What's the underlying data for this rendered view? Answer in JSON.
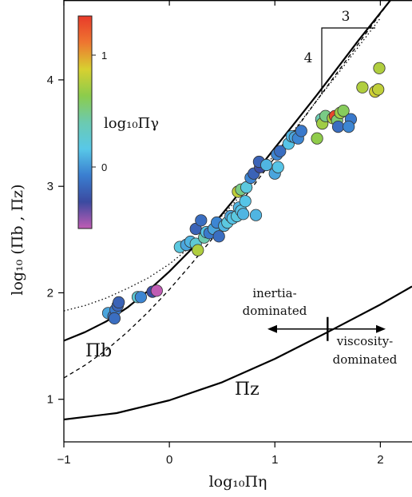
{
  "chart_data": {
    "type": "scatter",
    "title": "",
    "xlabel": "log₁₀Πη",
    "ylabel": "log₁₀ (Πb , Πz)",
    "xlim": [
      -1,
      2.3
    ],
    "ylim": [
      0.6,
      4.75
    ],
    "xticks": [
      -1,
      0,
      1,
      2
    ],
    "xtick_labels": [
      "−1",
      "0",
      "1",
      "2"
    ],
    "yticks": [
      1,
      2,
      3,
      4
    ],
    "ytick_labels": [
      "1",
      "2",
      "3",
      "4"
    ],
    "grid": false,
    "colorbar": {
      "label": "log₁₀Πγ",
      "range": [
        -0.55,
        1.35
      ],
      "ticks": [
        0,
        1
      ],
      "tick_labels": [
        "0",
        "1"
      ],
      "colors": [
        "#c05cb4",
        "#3b4aa0",
        "#3a7ed0",
        "#58c8e8",
        "#6ccab0",
        "#8ccc4c",
        "#d8d030",
        "#ee7630",
        "#e83a2a"
      ],
      "placement": "top-left"
    },
    "points": [
      {
        "x": -0.58,
        "y": 1.81,
        "c": 0.05
      },
      {
        "x": -0.53,
        "y": 1.78,
        "c": -0.12
      },
      {
        "x": -0.51,
        "y": 1.84,
        "c": -0.1
      },
      {
        "x": -0.49,
        "y": 1.88,
        "c": -0.18
      },
      {
        "x": -0.52,
        "y": 1.76,
        "c": -0.15
      },
      {
        "x": -0.48,
        "y": 1.91,
        "c": -0.2
      },
      {
        "x": -0.3,
        "y": 1.96,
        "c": 0.25
      },
      {
        "x": -0.27,
        "y": 1.96,
        "c": -0.05
      },
      {
        "x": -0.16,
        "y": 2.01,
        "c": -0.3
      },
      {
        "x": -0.12,
        "y": 2.02,
        "c": -0.55
      },
      {
        "x": 0.1,
        "y": 2.43,
        "c": 0.2
      },
      {
        "x": 0.16,
        "y": 2.45,
        "c": 0.05
      },
      {
        "x": 0.2,
        "y": 2.48,
        "c": 0.1
      },
      {
        "x": 0.25,
        "y": 2.46,
        "c": 0.25
      },
      {
        "x": 0.27,
        "y": 2.4,
        "c": 0.75
      },
      {
        "x": 0.25,
        "y": 2.6,
        "c": -0.2
      },
      {
        "x": 0.3,
        "y": 2.68,
        "c": -0.15
      },
      {
        "x": 0.33,
        "y": 2.52,
        "c": 0.4
      },
      {
        "x": 0.35,
        "y": 2.57,
        "c": 0.15
      },
      {
        "x": 0.38,
        "y": 2.56,
        "c": -0.1
      },
      {
        "x": 0.42,
        "y": 2.6,
        "c": 0.05
      },
      {
        "x": 0.47,
        "y": 2.53,
        "c": -0.15
      },
      {
        "x": 0.45,
        "y": 2.66,
        "c": -0.05
      },
      {
        "x": 0.52,
        "y": 2.63,
        "c": 0.1
      },
      {
        "x": 0.55,
        "y": 2.66,
        "c": 0.2
      },
      {
        "x": 0.58,
        "y": 2.72,
        "c": 0.05
      },
      {
        "x": 0.6,
        "y": 2.7,
        "c": 0.15
      },
      {
        "x": 0.64,
        "y": 2.72,
        "c": 0.2
      },
      {
        "x": 0.66,
        "y": 2.8,
        "c": 0.1
      },
      {
        "x": 0.68,
        "y": 2.77,
        "c": 0.15
      },
      {
        "x": 0.7,
        "y": 2.74,
        "c": 0.1
      },
      {
        "x": 0.72,
        "y": 2.86,
        "c": 0.15
      },
      {
        "x": 0.65,
        "y": 2.95,
        "c": 0.8
      },
      {
        "x": 0.68,
        "y": 2.97,
        "c": 0.5
      },
      {
        "x": 0.73,
        "y": 2.99,
        "c": 0.2
      },
      {
        "x": 0.77,
        "y": 3.08,
        "c": -0.05
      },
      {
        "x": 0.8,
        "y": 3.12,
        "c": -0.2
      },
      {
        "x": 0.86,
        "y": 3.18,
        "c": -0.3
      },
      {
        "x": 0.85,
        "y": 3.23,
        "c": -0.2
      },
      {
        "x": 0.82,
        "y": 2.73,
        "c": 0.1
      },
      {
        "x": 0.92,
        "y": 3.2,
        "c": 0.1
      },
      {
        "x": 1.0,
        "y": 3.12,
        "c": 0.05
      },
      {
        "x": 1.03,
        "y": 3.18,
        "c": 0.15
      },
      {
        "x": 1.02,
        "y": 3.3,
        "c": -0.05
      },
      {
        "x": 1.05,
        "y": 3.33,
        "c": -0.15
      },
      {
        "x": 1.13,
        "y": 3.4,
        "c": 0.15
      },
      {
        "x": 1.16,
        "y": 3.47,
        "c": 0.1
      },
      {
        "x": 1.19,
        "y": 3.46,
        "c": 0.05
      },
      {
        "x": 1.22,
        "y": 3.45,
        "c": -0.05
      },
      {
        "x": 1.25,
        "y": 3.52,
        "c": -0.1
      },
      {
        "x": 1.4,
        "y": 3.45,
        "c": 0.65
      },
      {
        "x": 1.44,
        "y": 3.63,
        "c": 0.4
      },
      {
        "x": 1.45,
        "y": 3.59,
        "c": 0.7
      },
      {
        "x": 1.48,
        "y": 3.66,
        "c": 0.5
      },
      {
        "x": 1.55,
        "y": 3.64,
        "c": 0.75
      },
      {
        "x": 1.57,
        "y": 3.66,
        "c": 1.3
      },
      {
        "x": 1.59,
        "y": 3.62,
        "c": 0.55
      },
      {
        "x": 1.62,
        "y": 3.69,
        "c": 0.7
      },
      {
        "x": 1.65,
        "y": 3.71,
        "c": 0.6
      },
      {
        "x": 1.6,
        "y": 3.56,
        "c": -0.15
      },
      {
        "x": 1.72,
        "y": 3.63,
        "c": -0.1
      },
      {
        "x": 1.7,
        "y": 3.56,
        "c": -0.05
      },
      {
        "x": 1.83,
        "y": 3.93,
        "c": 0.75
      },
      {
        "x": 1.95,
        "y": 3.89,
        "c": 0.85
      },
      {
        "x": 1.98,
        "y": 3.91,
        "c": 0.8
      },
      {
        "x": 1.99,
        "y": 4.11,
        "c": 0.75
      }
    ],
    "curves": {
      "pi_b": {
        "label": "Πb",
        "x": [
          -1.0,
          -0.8,
          -0.6,
          -0.4,
          -0.2,
          0.0,
          0.2,
          0.4,
          0.6,
          0.8,
          1.0,
          1.2,
          1.4,
          1.6,
          1.8,
          2.0,
          2.3
        ],
        "y": [
          1.55,
          1.63,
          1.73,
          1.86,
          2.02,
          2.2,
          2.4,
          2.62,
          2.86,
          3.11,
          3.36,
          3.61,
          3.86,
          4.12,
          4.38,
          4.63,
          5.0
        ]
      },
      "pi_z": {
        "label": "Πz",
        "x": [
          -1.0,
          -0.5,
          0.0,
          0.5,
          1.0,
          1.5,
          2.0,
          2.3
        ],
        "y": [
          0.81,
          0.87,
          0.99,
          1.16,
          1.38,
          1.63,
          1.89,
          2.06
        ]
      },
      "dotted": {
        "x": [
          -1.0,
          -0.8,
          -0.6,
          -0.4,
          -0.2,
          0.0,
          0.2,
          0.4,
          0.6,
          0.8,
          1.0,
          1.2,
          1.4,
          1.6,
          1.8,
          2.0
        ],
        "y": [
          1.83,
          1.88,
          1.95,
          2.04,
          2.14,
          2.27,
          2.43,
          2.62,
          2.83,
          3.06,
          3.3,
          3.55,
          3.81,
          4.06,
          4.32,
          4.58
        ]
      },
      "dashed": {
        "x": [
          -1.0,
          -0.8,
          -0.6,
          -0.4,
          -0.2,
          0.0,
          0.2,
          0.4,
          0.6,
          0.8,
          1.0,
          1.2,
          1.4,
          1.6,
          1.8,
          2.0,
          2.3
        ],
        "y": [
          1.2,
          1.32,
          1.46,
          1.63,
          1.82,
          2.03,
          2.26,
          2.5,
          2.75,
          3.01,
          3.27,
          3.54,
          3.81,
          4.08,
          4.35,
          4.62,
          5.02
        ]
      }
    },
    "annotations": {
      "slope_run": "3",
      "slope_rise": "4",
      "inertia_line1": "inertia-",
      "inertia_line2": "dominated",
      "viscosity_line1": "viscosity-",
      "viscosity_line2": "dominated",
      "transition_x": 1.5
    }
  }
}
